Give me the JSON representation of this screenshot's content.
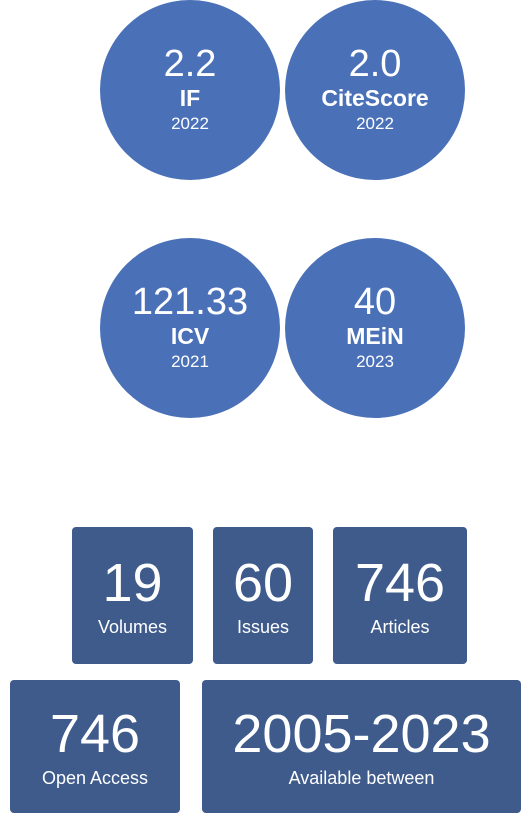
{
  "metrics": [
    {
      "value": "2.2",
      "label": "IF",
      "year": "2022"
    },
    {
      "value": "2.0",
      "label": "CiteScore",
      "year": "2022"
    },
    {
      "value": "121.33",
      "label": "ICV",
      "year": "2021"
    },
    {
      "value": "40",
      "label": "MEiN",
      "year": "2023"
    }
  ],
  "stats": [
    {
      "value": "19",
      "label": "Volumes"
    },
    {
      "value": "60",
      "label": "Issues"
    },
    {
      "value": "746",
      "label": "Articles"
    },
    {
      "value": "746",
      "label": "Open Access"
    },
    {
      "value": "2005-2023",
      "label": "Available between"
    }
  ]
}
